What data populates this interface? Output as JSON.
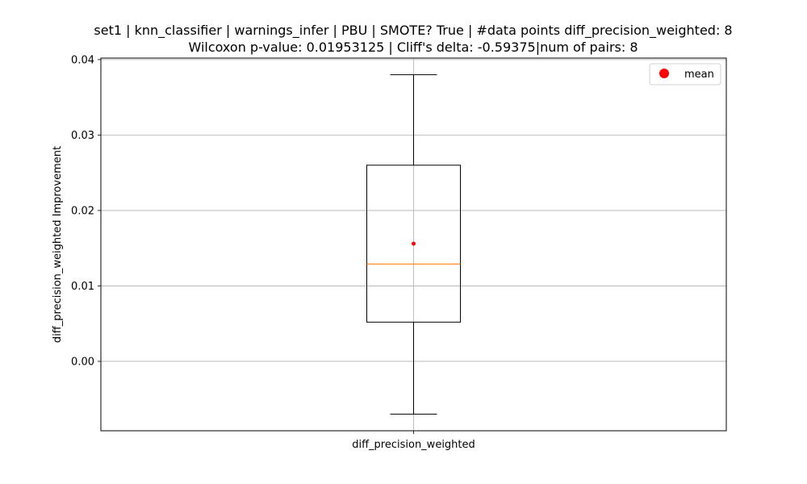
{
  "chart_data": {
    "type": "box",
    "title_line1": "set1 | knn_classifier | warnings_infer | PBU | SMOTE? True | #data points diff_precision_weighted: 8",
    "title_line2": "Wilcoxon p-value: 0.01953125 | Cliff's delta: -0.59375|num of pairs: 8",
    "xlabel": "",
    "ylabel": "diff_precision_weighted Improvement",
    "categories": [
      "diff_precision_weighted"
    ],
    "ylim": [
      -0.0092,
      0.0402
    ],
    "yticks": [
      0.0,
      0.01,
      0.02,
      0.03,
      0.04
    ],
    "ytick_labels": [
      "0.00",
      "0.01",
      "0.02",
      "0.03",
      "0.04"
    ],
    "box": {
      "whisker_low": -0.007,
      "q1": 0.0052,
      "median": 0.0129,
      "q3": 0.026,
      "whisker_high": 0.038,
      "mean": 0.0156
    },
    "grid": true,
    "legend": {
      "position": "top-right",
      "entries": [
        "mean"
      ]
    },
    "colors": {
      "box": "#000000",
      "median": "#ff7f0e",
      "mean": "#ff0000",
      "grid": "#b0b0b0"
    }
  }
}
